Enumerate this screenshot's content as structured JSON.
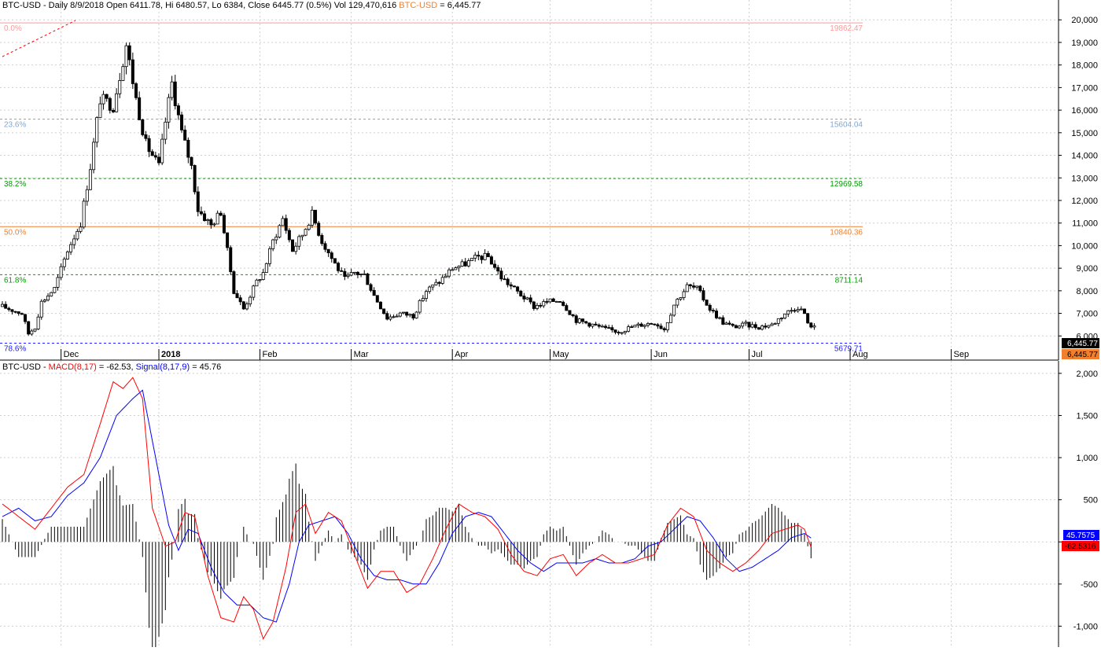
{
  "colors": {
    "background": "#ffffff",
    "grid": "#cfcfcf",
    "candle": "#000000",
    "macd": "#ff0000",
    "signal": "#0000ff",
    "histogram": "#000000",
    "fib_0": "#ff9999",
    "fib_236": "#7fa7d6",
    "fib_382": "#00a000",
    "fib_50": "#f08030",
    "fib_618": "#00a000",
    "fib_786": "#2222ff",
    "close_label_bg": "#000000",
    "price_label_bg": "#f08030",
    "macd_label_bg": "#ff0000",
    "signal_label_bg": "#0000ff"
  },
  "chart_data": [
    {
      "type": "candlestick",
      "title": {
        "symbol": "BTC-USD",
        "text": " - Daily 8/9/2018 Open 6411.78, Hi 6480.57, Lo 6384, Close 6445.77 (0.5%) Vol 129,470,616 ",
        "ref_symbol": "BTC-USD",
        "ref_value": " = 6,445.77"
      },
      "months": [
        "Dec",
        "2018",
        "Feb",
        "Mar",
        "Apr",
        "May",
        "Jun",
        "Jul",
        "Aug",
        "Sep"
      ],
      "month_offsets": [
        18,
        48,
        79,
        107,
        138,
        168,
        199,
        229,
        260,
        291
      ],
      "total_days": 295,
      "ylim": [
        5000,
        20600
      ],
      "y_ticks": [
        6000,
        7000,
        8000,
        9000,
        10000,
        11000,
        12000,
        13000,
        14000,
        15000,
        16000,
        17000,
        18000,
        19000,
        20000
      ],
      "y_tick_labels": [
        "6,000",
        "7,000",
        "8,000",
        "9,000",
        "10,000",
        "11,000",
        "12,000",
        "13,000",
        "14,000",
        "15,000",
        "16,000",
        "17,000",
        "18,000",
        "19,000",
        "20,000"
      ],
      "close_anchors": [
        [
          0,
          7300
        ],
        [
          6,
          7000
        ],
        [
          8,
          6100
        ],
        [
          10,
          6400
        ],
        [
          12,
          7500
        ],
        [
          16,
          8100
        ],
        [
          20,
          9800
        ],
        [
          24,
          11000
        ],
        [
          27,
          13500
        ],
        [
          30,
          16500
        ],
        [
          34,
          16200
        ],
        [
          38,
          18900
        ],
        [
          41,
          16500
        ],
        [
          44,
          14500
        ],
        [
          48,
          13500
        ],
        [
          50,
          15500
        ],
        [
          52,
          17200
        ],
        [
          55,
          15000
        ],
        [
          58,
          13500
        ],
        [
          60,
          11600
        ],
        [
          64,
          10900
        ],
        [
          67,
          11500
        ],
        [
          71,
          8000
        ],
        [
          74,
          7200
        ],
        [
          78,
          8400
        ],
        [
          80,
          8800
        ],
        [
          83,
          10200
        ],
        [
          86,
          11200
        ],
        [
          89,
          9800
        ],
        [
          92,
          10500
        ],
        [
          95,
          11400
        ],
        [
          98,
          10200
        ],
        [
          102,
          9200
        ],
        [
          105,
          8500
        ],
        [
          108,
          8800
        ],
        [
          111,
          8700
        ],
        [
          114,
          7800
        ],
        [
          118,
          6800
        ],
        [
          122,
          7000
        ],
        [
          126,
          6900
        ],
        [
          130,
          8000
        ],
        [
          134,
          8400
        ],
        [
          138,
          9000
        ],
        [
          142,
          9200
        ],
        [
          146,
          9500
        ],
        [
          149,
          9500
        ],
        [
          153,
          8600
        ],
        [
          156,
          8200
        ],
        [
          160,
          7700
        ],
        [
          163,
          7300
        ],
        [
          167,
          7500
        ],
        [
          171,
          7600
        ],
        [
          176,
          6700
        ],
        [
          181,
          6500
        ],
        [
          185,
          6300
        ],
        [
          189,
          6200
        ],
        [
          193,
          6400
        ],
        [
          196,
          6500
        ],
        [
          200,
          6600
        ],
        [
          203,
          6300
        ],
        [
          206,
          7400
        ],
        [
          210,
          8200
        ],
        [
          213,
          8100
        ],
        [
          217,
          7200
        ],
        [
          221,
          6600
        ],
        [
          224,
          6400
        ],
        [
          228,
          6500
        ],
        [
          232,
          6400
        ],
        [
          236,
          6500
        ],
        [
          240,
          7000
        ],
        [
          244,
          7300
        ],
        [
          246,
          7000
        ],
        [
          247,
          6500
        ],
        [
          249,
          6446
        ]
      ],
      "current_close": 6445.77,
      "close_label": "6,445.77",
      "price_label": "6,445.77",
      "fibonacci": [
        {
          "key": "f0",
          "pct": "0.0%",
          "value": 19862.47,
          "label": "19862.47",
          "color": "#ff9999"
        },
        {
          "key": "f236",
          "pct": "23.6%",
          "value": 15604.04,
          "label": "15604.04",
          "color": "#7fa7d6"
        },
        {
          "key": "f382",
          "pct": "38.2%",
          "value": 12969.58,
          "label": "12969.58",
          "color": "#00a000"
        },
        {
          "key": "f50",
          "pct": "50.0%",
          "value": 10840.36,
          "label": "10840.36",
          "color": "#f08030"
        },
        {
          "key": "f618",
          "pct": "61.8%",
          "value": 8711.14,
          "label": "8711.14",
          "color": "#00a000"
        },
        {
          "key": "f786",
          "pct": "78.6%",
          "value": 5679.71,
          "label": "5679.71",
          "color": "#2222ff"
        }
      ]
    },
    {
      "type": "line",
      "title": {
        "symbol": "BTC-USD",
        "sep1": " - ",
        "macd_label": "MACD(8,17)",
        "macd_value": " = -62.53, ",
        "signal_label": "Signal(8,17,9)",
        "signal_value": " = 45.76"
      },
      "ylim": [
        -1220,
        2120
      ],
      "y_ticks": [
        -1000,
        -500,
        0,
        500,
        1000,
        1500,
        2000
      ],
      "y_tick_labels": [
        "-1,000",
        "-500",
        "0",
        "500",
        "1,000",
        "1,500",
        "2,000"
      ],
      "macd_anchors": [
        [
          0,
          450
        ],
        [
          5,
          300
        ],
        [
          10,
          150
        ],
        [
          15,
          400
        ],
        [
          20,
          650
        ],
        [
          25,
          800
        ],
        [
          30,
          1400
        ],
        [
          34,
          1900
        ],
        [
          37,
          1820
        ],
        [
          40,
          1950
        ],
        [
          43,
          1700
        ],
        [
          46,
          400
        ],
        [
          50,
          -50
        ],
        [
          53,
          0
        ],
        [
          56,
          350
        ],
        [
          59,
          300
        ],
        [
          63,
          -400
        ],
        [
          67,
          -900
        ],
        [
          71,
          -950
        ],
        [
          74,
          -650
        ],
        [
          77,
          -800
        ],
        [
          80,
          -1150
        ],
        [
          83,
          -950
        ],
        [
          87,
          -300
        ],
        [
          90,
          350
        ],
        [
          93,
          450
        ],
        [
          96,
          100
        ],
        [
          100,
          350
        ],
        [
          104,
          250
        ],
        [
          108,
          -150
        ],
        [
          112,
          -550
        ],
        [
          116,
          -350
        ],
        [
          120,
          -350
        ],
        [
          124,
          -600
        ],
        [
          128,
          -500
        ],
        [
          132,
          -200
        ],
        [
          136,
          150
        ],
        [
          140,
          450
        ],
        [
          144,
          350
        ],
        [
          148,
          300
        ],
        [
          152,
          150
        ],
        [
          156,
          -150
        ],
        [
          160,
          -350
        ],
        [
          164,
          -400
        ],
        [
          168,
          -200
        ],
        [
          172,
          -150
        ],
        [
          176,
          -400
        ],
        [
          180,
          -250
        ],
        [
          184,
          -150
        ],
        [
          188,
          -250
        ],
        [
          192,
          -250
        ],
        [
          196,
          -200
        ],
        [
          200,
          -150
        ],
        [
          204,
          200
        ],
        [
          208,
          400
        ],
        [
          212,
          300
        ],
        [
          216,
          -100
        ],
        [
          220,
          -250
        ],
        [
          224,
          -350
        ],
        [
          228,
          -250
        ],
        [
          232,
          -100
        ],
        [
          236,
          100
        ],
        [
          240,
          150
        ],
        [
          244,
          200
        ],
        [
          246,
          150
        ],
        [
          248,
          -62.53
        ]
      ],
      "signal_anchors": [
        [
          0,
          300
        ],
        [
          5,
          400
        ],
        [
          10,
          250
        ],
        [
          15,
          300
        ],
        [
          20,
          550
        ],
        [
          25,
          700
        ],
        [
          30,
          1000
        ],
        [
          35,
          1500
        ],
        [
          40,
          1700
        ],
        [
          43,
          1800
        ],
        [
          47,
          1000
        ],
        [
          51,
          200
        ],
        [
          54,
          -100
        ],
        [
          57,
          150
        ],
        [
          60,
          100
        ],
        [
          64,
          -300
        ],
        [
          68,
          -600
        ],
        [
          72,
          -750
        ],
        [
          76,
          -750
        ],
        [
          80,
          -900
        ],
        [
          84,
          -950
        ],
        [
          88,
          -500
        ],
        [
          91,
          0
        ],
        [
          94,
          200
        ],
        [
          98,
          250
        ],
        [
          102,
          300
        ],
        [
          106,
          100
        ],
        [
          110,
          -200
        ],
        [
          114,
          -400
        ],
        [
          118,
          -450
        ],
        [
          122,
          -450
        ],
        [
          126,
          -500
        ],
        [
          130,
          -500
        ],
        [
          134,
          -250
        ],
        [
          138,
          100
        ],
        [
          142,
          300
        ],
        [
          146,
          350
        ],
        [
          150,
          300
        ],
        [
          154,
          100
        ],
        [
          158,
          -100
        ],
        [
          162,
          -250
        ],
        [
          166,
          -350
        ],
        [
          170,
          -250
        ],
        [
          174,
          -250
        ],
        [
          178,
          -250
        ],
        [
          182,
          -200
        ],
        [
          186,
          -250
        ],
        [
          190,
          -250
        ],
        [
          194,
          -200
        ],
        [
          198,
          -50
        ],
        [
          202,
          0
        ],
        [
          206,
          150
        ],
        [
          210,
          300
        ],
        [
          214,
          250
        ],
        [
          218,
          50
        ],
        [
          222,
          -200
        ],
        [
          226,
          -350
        ],
        [
          230,
          -300
        ],
        [
          234,
          -200
        ],
        [
          238,
          -100
        ],
        [
          242,
          50
        ],
        [
          246,
          100
        ],
        [
          248,
          45.76
        ]
      ],
      "macd_current_label": "-62.5316",
      "signal_current_label": "45.7575"
    }
  ]
}
